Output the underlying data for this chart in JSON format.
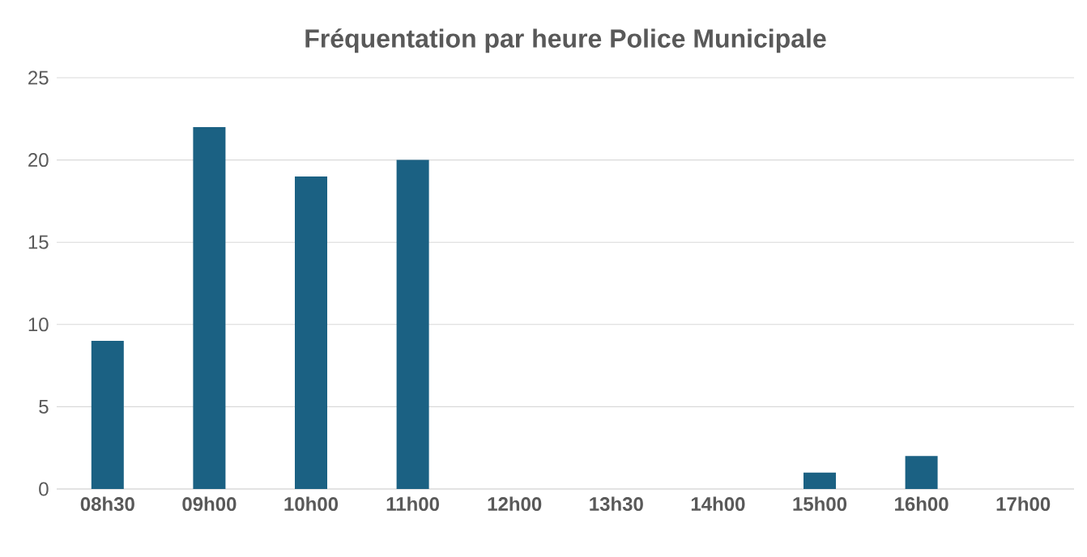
{
  "chart_data": {
    "type": "bar",
    "title": "Fréquentation par heure Police Municipale",
    "categories": [
      "08h30",
      "09h00",
      "10h00",
      "11h00",
      "12h00",
      "13h30",
      "14h00",
      "15h00",
      "16h00",
      "17h00"
    ],
    "values": [
      9,
      22,
      19,
      20,
      0,
      0,
      0,
      1,
      2,
      0
    ],
    "color": "#1b6183",
    "ylim": [
      0,
      25
    ],
    "yticks": [
      0,
      5,
      10,
      15,
      20,
      25
    ],
    "grid": "y"
  }
}
